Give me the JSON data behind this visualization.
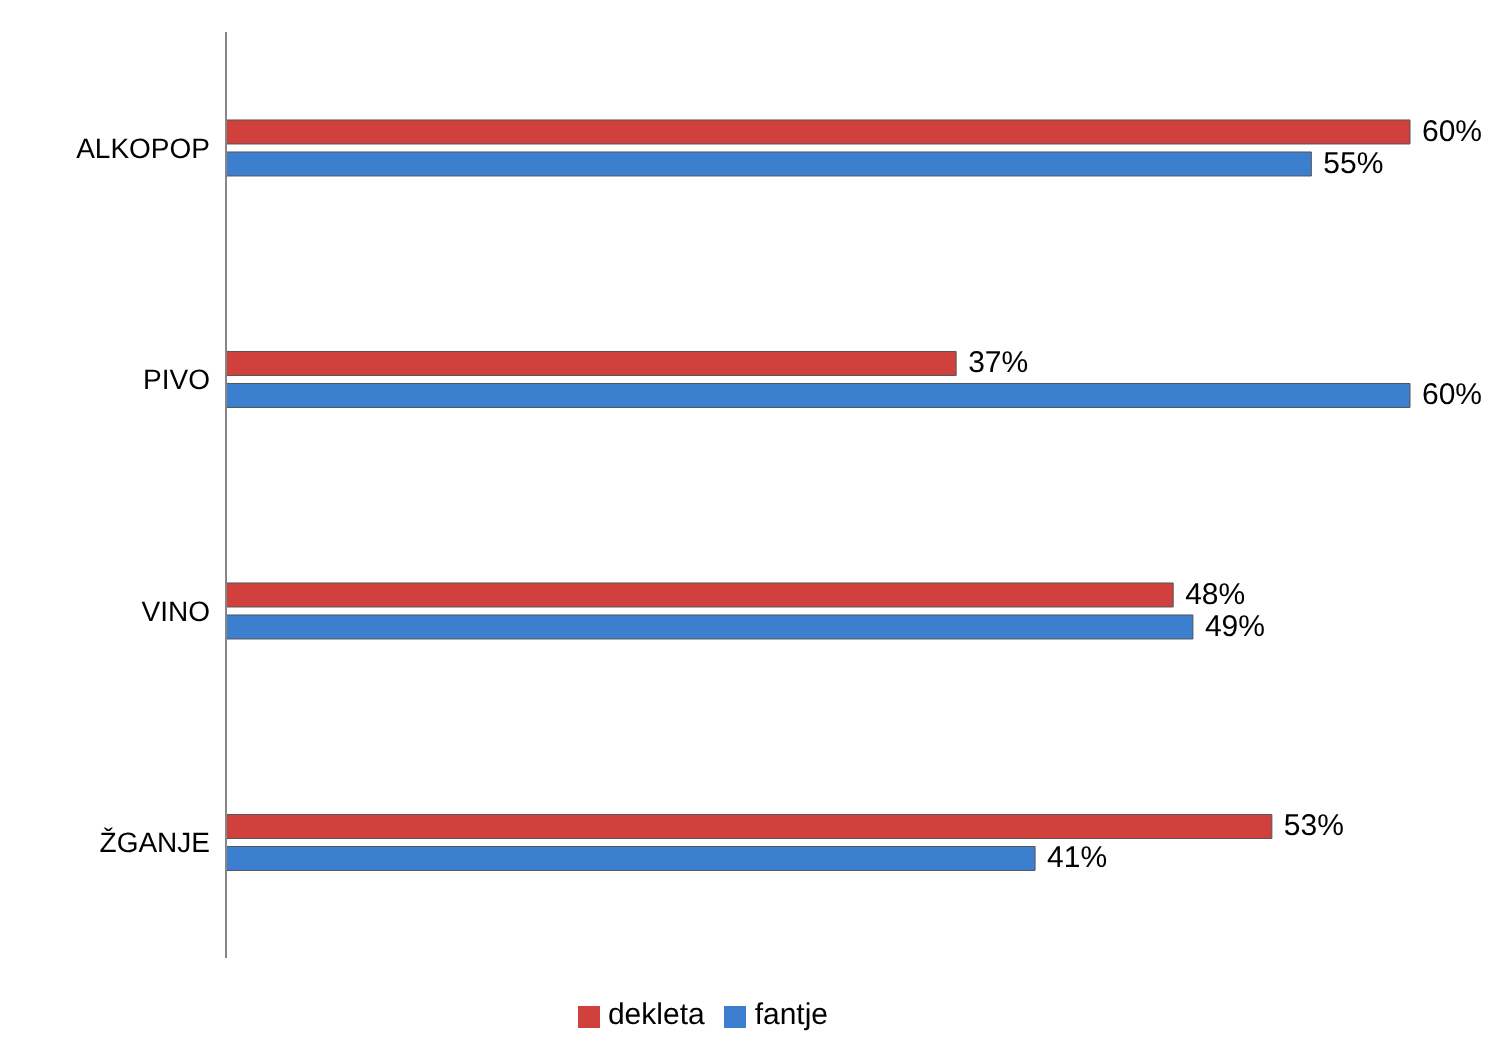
{
  "chart_data": {
    "type": "bar",
    "orientation": "horizontal",
    "categories": [
      "ALKOPOP",
      "PIVO",
      "VINO",
      "ŽGANJE"
    ],
    "series": [
      {
        "name": "dekleta",
        "color": "#d0413d",
        "values": [
          60,
          37,
          48,
          53
        ],
        "value_labels": [
          "60%",
          "37%",
          "48%",
          "53%"
        ]
      },
      {
        "name": "fantje",
        "color": "#3d7fcf",
        "values": [
          55,
          60,
          49,
          41
        ],
        "value_labels": [
          "55%",
          "60%",
          "49%",
          "41%"
        ]
      }
    ],
    "legend": "bottom",
    "grid": false
  }
}
